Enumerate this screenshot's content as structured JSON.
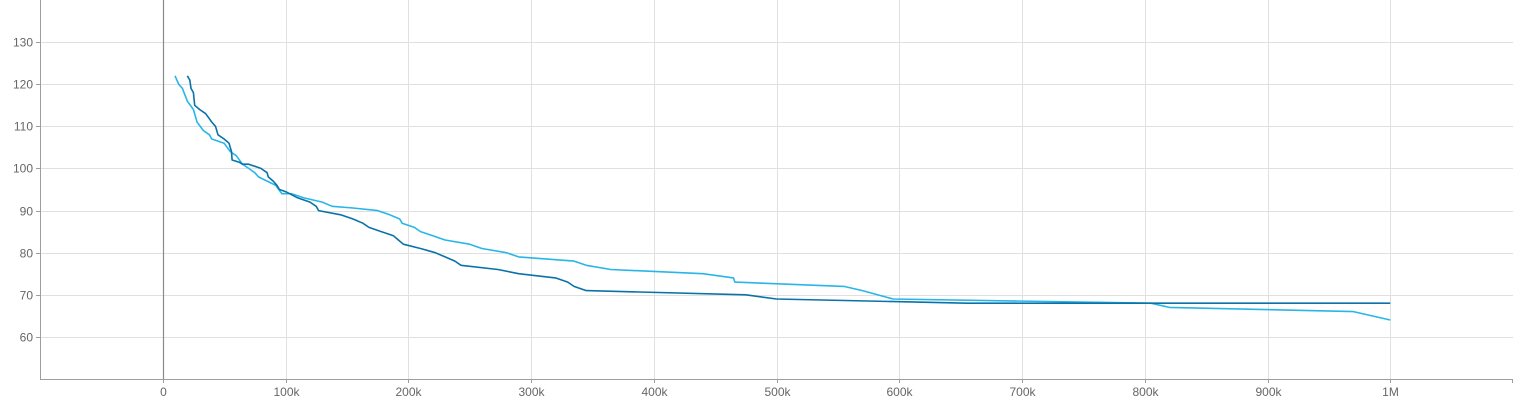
{
  "chart_data": {
    "type": "line",
    "title": "",
    "xlabel": "",
    "ylabel": "",
    "xlim": [
      -100000,
      1100000
    ],
    "ylim": [
      50,
      140
    ],
    "grid": true,
    "x_ticks": [
      {
        "value": 0,
        "label": "0"
      },
      {
        "value": 100000,
        "label": "100k"
      },
      {
        "value": 200000,
        "label": "200k"
      },
      {
        "value": 300000,
        "label": "300k"
      },
      {
        "value": 400000,
        "label": "400k"
      },
      {
        "value": 500000,
        "label": "500k"
      },
      {
        "value": 600000,
        "label": "600k"
      },
      {
        "value": 700000,
        "label": "700k"
      },
      {
        "value": 800000,
        "label": "800k"
      },
      {
        "value": 900000,
        "label": "900k"
      },
      {
        "value": 1000000,
        "label": "1M"
      }
    ],
    "y_ticks": [
      {
        "value": 60,
        "label": "60"
      },
      {
        "value": 70,
        "label": "70"
      },
      {
        "value": 80,
        "label": "80"
      },
      {
        "value": 90,
        "label": "90"
      },
      {
        "value": 100,
        "label": "100"
      },
      {
        "value": 110,
        "label": "110"
      },
      {
        "value": 120,
        "label": "120"
      },
      {
        "value": 130,
        "label": "130"
      }
    ],
    "series": [
      {
        "color": "#29b6e6",
        "points": [
          [
            10000,
            122
          ],
          [
            13000,
            120
          ],
          [
            16000,
            119
          ],
          [
            20000,
            116
          ],
          [
            25000,
            114
          ],
          [
            28000,
            111
          ],
          [
            33000,
            109
          ],
          [
            38000,
            108
          ],
          [
            40000,
            107
          ],
          [
            50000,
            106
          ],
          [
            55000,
            104
          ],
          [
            60000,
            103
          ],
          [
            65000,
            101
          ],
          [
            70000,
            100
          ],
          [
            75000,
            99
          ],
          [
            78000,
            98
          ],
          [
            85000,
            97
          ],
          [
            92000,
            96
          ],
          [
            97000,
            94
          ],
          [
            105000,
            94
          ],
          [
            115000,
            93
          ],
          [
            130000,
            92
          ],
          [
            138000,
            91
          ],
          [
            155000,
            90.6
          ],
          [
            175000,
            90
          ],
          [
            185000,
            89
          ],
          [
            193000,
            88
          ],
          [
            195000,
            87
          ],
          [
            205000,
            86
          ],
          [
            210000,
            85
          ],
          [
            220000,
            84
          ],
          [
            230000,
            83
          ],
          [
            250000,
            82
          ],
          [
            260000,
            81
          ],
          [
            280000,
            80
          ],
          [
            290000,
            79
          ],
          [
            335000,
            78
          ],
          [
            345000,
            77
          ],
          [
            365000,
            76
          ],
          [
            440000,
            75
          ],
          [
            465000,
            74
          ],
          [
            466000,
            73
          ],
          [
            555000,
            72
          ],
          [
            570000,
            71
          ],
          [
            595000,
            69
          ],
          [
            805000,
            68
          ],
          [
            820000,
            67
          ],
          [
            970000,
            66
          ],
          [
            1000000,
            64
          ]
        ]
      },
      {
        "color": "#0a72a8",
        "points": [
          [
            20000,
            122
          ],
          [
            22000,
            121
          ],
          [
            23000,
            119
          ],
          [
            25000,
            118
          ],
          [
            26000,
            115
          ],
          [
            30000,
            114
          ],
          [
            35000,
            113
          ],
          [
            40000,
            111
          ],
          [
            43000,
            110
          ],
          [
            45000,
            108
          ],
          [
            50000,
            107
          ],
          [
            54000,
            106
          ],
          [
            56000,
            104
          ],
          [
            56500,
            102
          ],
          [
            62000,
            101.5
          ],
          [
            65000,
            101
          ],
          [
            70000,
            101
          ],
          [
            80000,
            100
          ],
          [
            85000,
            99
          ],
          [
            86000,
            98
          ],
          [
            90000,
            97
          ],
          [
            93000,
            96
          ],
          [
            95000,
            95
          ],
          [
            100000,
            94.5
          ],
          [
            110000,
            93
          ],
          [
            120000,
            92
          ],
          [
            125000,
            91
          ],
          [
            127000,
            90
          ],
          [
            145000,
            89
          ],
          [
            155000,
            88
          ],
          [
            163000,
            87
          ],
          [
            168000,
            86
          ],
          [
            178000,
            85
          ],
          [
            188000,
            84
          ],
          [
            192000,
            83
          ],
          [
            196000,
            82
          ],
          [
            210000,
            81
          ],
          [
            222000,
            80
          ],
          [
            230000,
            79
          ],
          [
            238000,
            78
          ],
          [
            243000,
            77
          ],
          [
            273000,
            76
          ],
          [
            290000,
            75
          ],
          [
            320000,
            74
          ],
          [
            330000,
            73
          ],
          [
            335000,
            72
          ],
          [
            345000,
            71
          ],
          [
            475000,
            70
          ],
          [
            500000,
            69
          ],
          [
            655000,
            68
          ],
          [
            1000000,
            68
          ]
        ]
      }
    ]
  }
}
